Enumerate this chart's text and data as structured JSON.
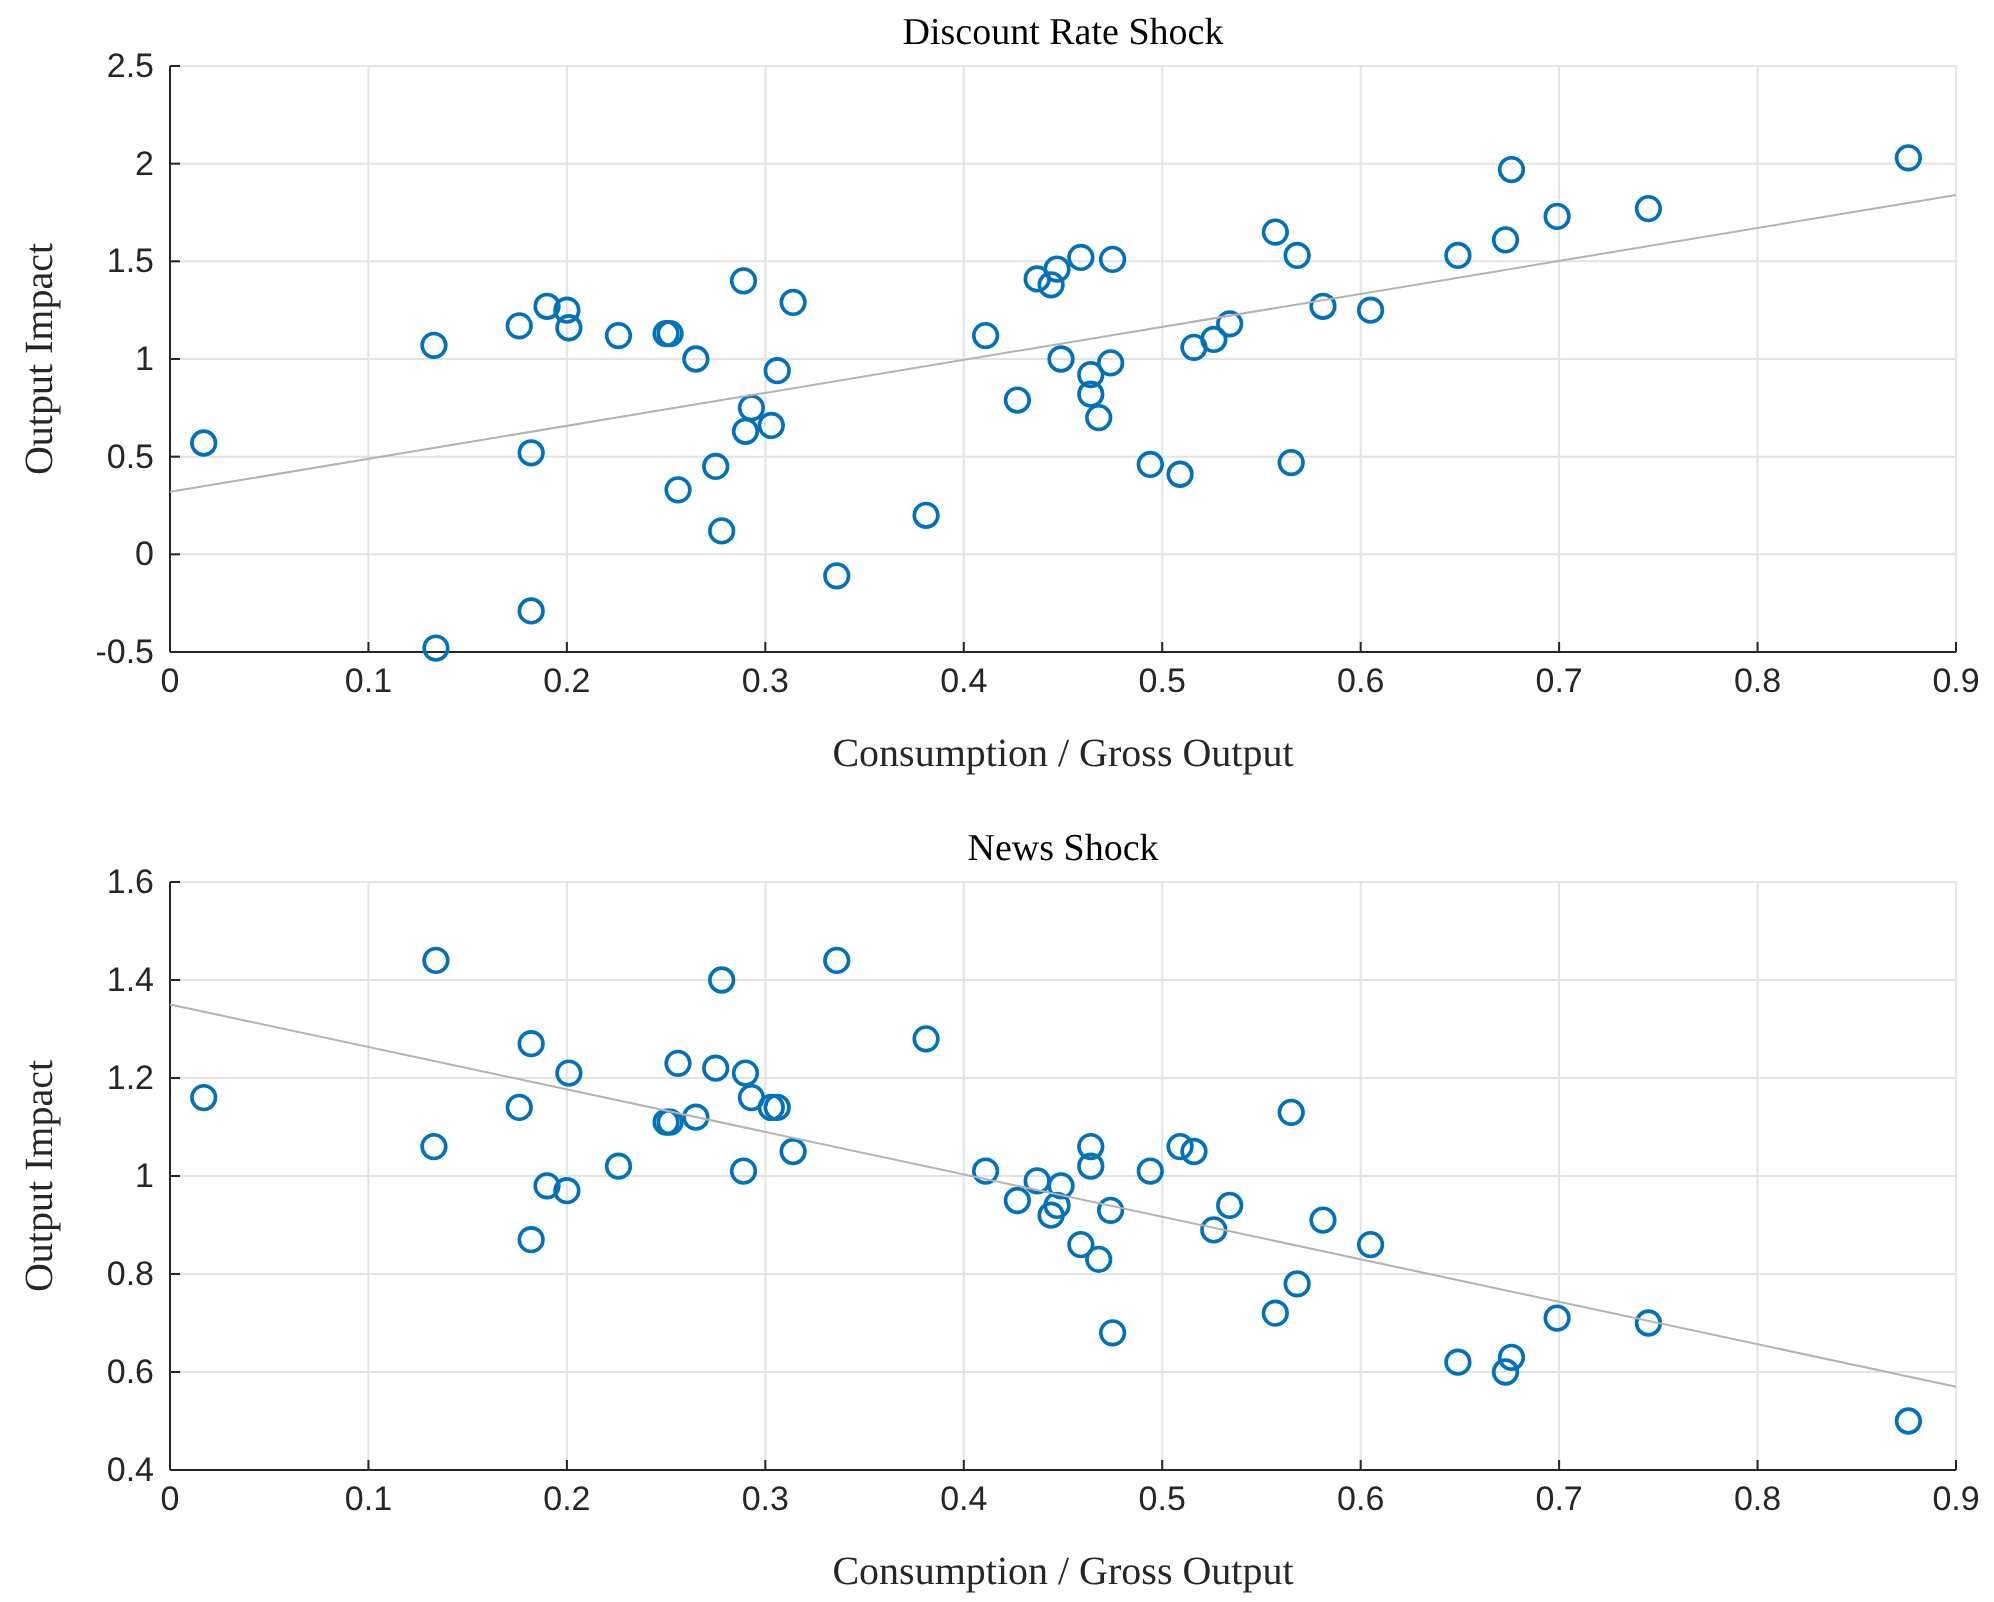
{
  "chart_data": [
    {
      "type": "scatter",
      "title": "Discount Rate Shock",
      "xlabel": "Consumption / Gross Output",
      "ylabel": "Output Impact",
      "xlim": [
        0,
        0.9
      ],
      "xticks": [
        0,
        0.1,
        0.2,
        0.3,
        0.4,
        0.5,
        0.6,
        0.7,
        0.8,
        0.9
      ],
      "ylim": [
        -0.5,
        2.5
      ],
      "yticks": [
        -0.5,
        0,
        0.5,
        1,
        1.5,
        2,
        2.5
      ],
      "grid": true,
      "series": [
        {
          "marker": "circle",
          "color": "#0072bd",
          "x": [
            0.017,
            0.133,
            0.134,
            0.182,
            0.182,
            0.176,
            0.19,
            0.2,
            0.201,
            0.226,
            0.25,
            0.252,
            0.265,
            0.289,
            0.314,
            0.306,
            0.293,
            0.29,
            0.303,
            0.275,
            0.256,
            0.278,
            0.336,
            0.381,
            0.411,
            0.427,
            0.437,
            0.444,
            0.447,
            0.449,
            0.459,
            0.475,
            0.464,
            0.464,
            0.468,
            0.474,
            0.494,
            0.509,
            0.516,
            0.526,
            0.534,
            0.557,
            0.568,
            0.565,
            0.581,
            0.605,
            0.649,
            0.673,
            0.676,
            0.699,
            0.745,
            0.876
          ],
          "values": [
            0.57,
            1.07,
            -0.48,
            0.52,
            -0.29,
            1.17,
            1.27,
            1.25,
            1.16,
            1.12,
            1.13,
            1.13,
            1.0,
            1.4,
            1.29,
            0.94,
            0.75,
            0.63,
            0.66,
            0.45,
            0.33,
            0.12,
            -0.11,
            0.2,
            1.12,
            0.79,
            1.41,
            1.38,
            1.46,
            1.0,
            1.52,
            1.51,
            0.92,
            0.82,
            0.7,
            0.98,
            0.46,
            0.41,
            1.06,
            1.1,
            1.18,
            1.65,
            1.53,
            0.47,
            1.27,
            1.25,
            1.53,
            1.61,
            1.97,
            1.73,
            1.77,
            2.03
          ]
        },
        {
          "type": "line",
          "color": "#b3b3b3",
          "x": [
            0,
            0.9
          ],
          "values": [
            0.32,
            1.84
          ]
        }
      ]
    },
    {
      "type": "scatter",
      "title": "News Shock",
      "xlabel": "Consumption / Gross Output",
      "ylabel": "Output Impact",
      "xlim": [
        0,
        0.9
      ],
      "xticks": [
        0,
        0.1,
        0.2,
        0.3,
        0.4,
        0.5,
        0.6,
        0.7,
        0.8,
        0.9
      ],
      "ylim": [
        0.4,
        1.6
      ],
      "yticks": [
        0.4,
        0.6,
        0.8,
        1,
        1.2,
        1.4,
        1.6
      ],
      "grid": true,
      "series": [
        {
          "marker": "circle",
          "color": "#0072bd",
          "x": [
            0.017,
            0.134,
            0.133,
            0.182,
            0.182,
            0.176,
            0.19,
            0.2,
            0.201,
            0.226,
            0.25,
            0.252,
            0.265,
            0.289,
            0.314,
            0.306,
            0.293,
            0.29,
            0.303,
            0.275,
            0.256,
            0.278,
            0.336,
            0.381,
            0.411,
            0.427,
            0.437,
            0.444,
            0.447,
            0.449,
            0.459,
            0.464,
            0.464,
            0.468,
            0.474,
            0.475,
            0.494,
            0.509,
            0.516,
            0.526,
            0.534,
            0.557,
            0.568,
            0.565,
            0.581,
            0.605,
            0.649,
            0.673,
            0.676,
            0.699,
            0.745,
            0.876
          ],
          "values": [
            1.16,
            1.44,
            1.06,
            1.27,
            0.87,
            1.14,
            0.98,
            0.97,
            1.21,
            1.02,
            1.11,
            1.11,
            1.12,
            1.01,
            1.05,
            1.14,
            1.16,
            1.21,
            1.14,
            1.22,
            1.23,
            1.4,
            1.44,
            1.28,
            1.01,
            0.95,
            0.99,
            0.92,
            0.94,
            0.98,
            0.86,
            1.06,
            1.02,
            0.83,
            0.93,
            0.68,
            1.01,
            1.06,
            1.05,
            0.89,
            0.94,
            0.72,
            0.78,
            1.13,
            0.91,
            0.86,
            0.62,
            0.6,
            0.63,
            0.71,
            0.7,
            0.5
          ]
        },
        {
          "type": "line",
          "color": "#b3b3b3",
          "x": [
            0,
            0.9
          ],
          "values": [
            1.35,
            0.57
          ]
        }
      ]
    }
  ]
}
